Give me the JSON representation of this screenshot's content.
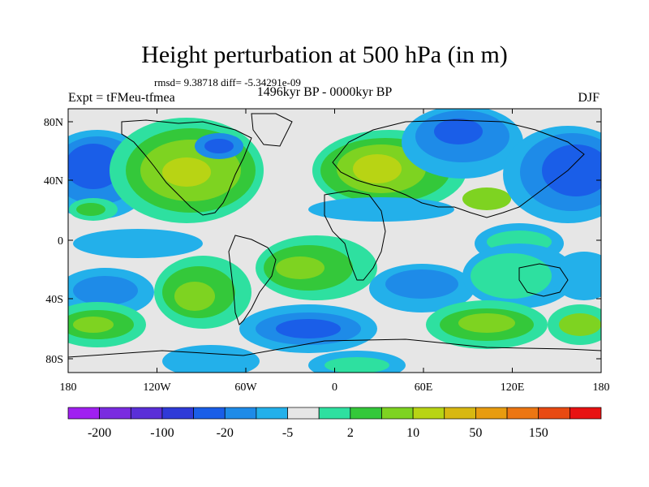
{
  "title": "Height perturbation at 500 hPa (in m)",
  "stats": "rmsd= 9.38718 diff= -5.34291e-09",
  "experiment": "Expt = tFMeu-tfmea",
  "period": "1496kyr BP - 0000kyr BP",
  "season": "DJF",
  "map": {
    "background_color": "#e6e6e6",
    "lat_ticks": [
      "80N",
      "40N",
      "0",
      "40S",
      "80S"
    ],
    "lon_ticks": [
      "180",
      "120W",
      "60W",
      "0",
      "60E",
      "120E",
      "180"
    ]
  },
  "colorbar": {
    "colors": [
      "#a020f0",
      "#7a2be0",
      "#5a2fd8",
      "#2f3ad8",
      "#1a5ee8",
      "#1e8be8",
      "#23b0ea",
      "#e6e6e6",
      "#2ee0a0",
      "#34c83a",
      "#7ed321",
      "#b8d414",
      "#d8b811",
      "#e89c10",
      "#ec7612",
      "#e84a12",
      "#e81212"
    ],
    "labels": [
      "-200",
      "-100",
      "-20",
      "-5",
      "2",
      "10",
      "50",
      "150"
    ]
  }
}
